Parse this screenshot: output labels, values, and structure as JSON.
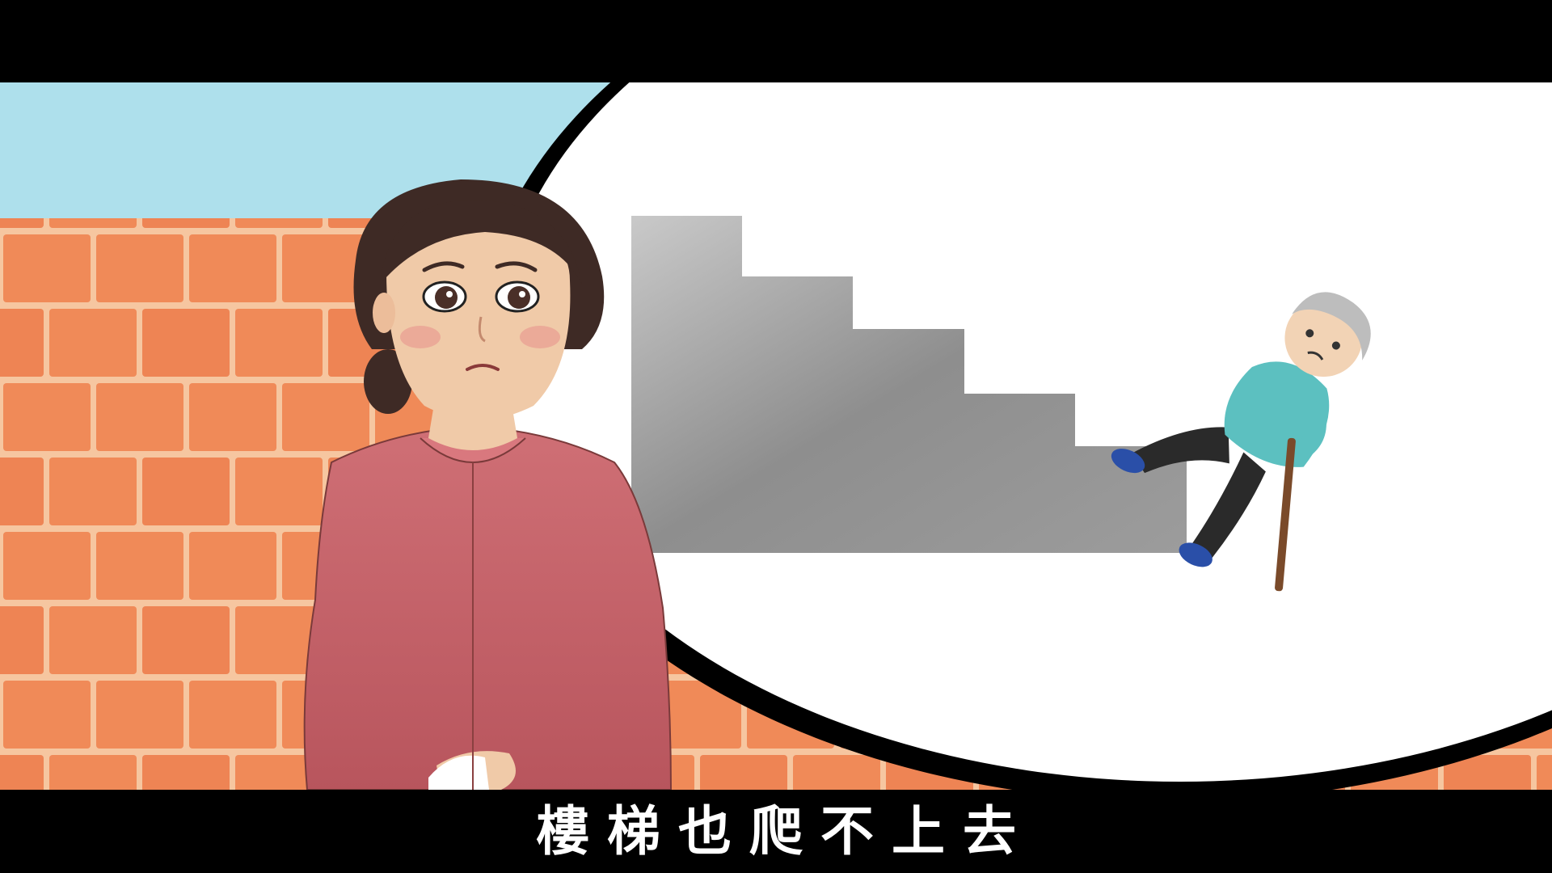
{
  "scene": {
    "subtitle": "樓梯也爬不上去",
    "characters": [
      "worried-woman",
      "elderly-man-with-cane"
    ],
    "thought_bubble_content": "staircase"
  },
  "colors": {
    "sky": "#aee0ec",
    "brick": "#f08a58",
    "mortar": "#f6c6a0",
    "bubble": "#ffffff",
    "bubble_outline": "#000000",
    "stairs": "#8f8f8f",
    "blouse": "#c4646b",
    "hair": "#3e2a25",
    "subtitle_text": "#ffffff",
    "letterbox": "#000000"
  }
}
